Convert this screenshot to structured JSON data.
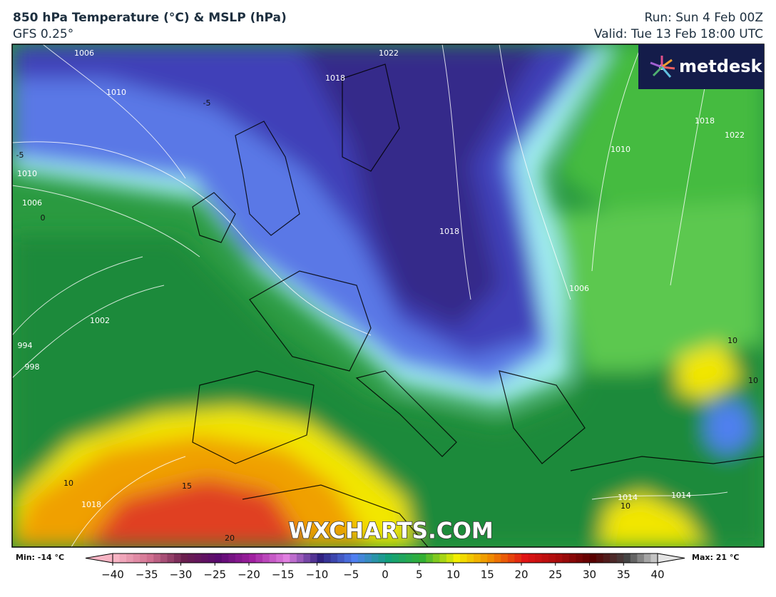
{
  "header": {
    "title": "850 hPa Temperature (°C) & MSLP (hPa)",
    "subtitle": "GFS 0.25°",
    "run": "Run: Sun 4 Feb 00Z",
    "valid": "Valid: Tue 13 Feb 18:00 UTC"
  },
  "logo": "metdesk",
  "watermark": "WXCHARTS.COM",
  "colorbar": {
    "min_label": "Min: -14 °C",
    "max_label": "Max: 21 °C",
    "range": [
      -40,
      40
    ],
    "ticks": [
      {
        "value": -40,
        "label": "−40"
      },
      {
        "value": -35,
        "label": "−35"
      },
      {
        "value": -30,
        "label": "−30"
      },
      {
        "value": -25,
        "label": "−25"
      },
      {
        "value": -20,
        "label": "−20"
      },
      {
        "value": -15,
        "label": "−15"
      },
      {
        "value": -10,
        "label": "−10"
      },
      {
        "value": -5,
        "label": "−5"
      },
      0,
      5,
      10,
      15,
      20,
      25,
      30,
      35,
      40
    ],
    "colors": [
      "#f8b4c4",
      "#d07090",
      "#6a1e4e",
      "#5a0a70",
      "#a020a0",
      "#e080e0",
      "#302080",
      "#4f7ff0",
      "#12a07a",
      "#34b034",
      "#f2ee00",
      "#f08a00",
      "#e01414",
      "#a80c0c",
      "#580000",
      "#444444",
      "#e4e4e4"
    ]
  },
  "contour_labels": [
    "1006",
    "1010",
    "1010",
    "1006",
    "0",
    "-5",
    "-5",
    "1018",
    "1006",
    "1010",
    "1018",
    "1022",
    "1002",
    "994",
    "998",
    "10",
    "15",
    "20",
    "1018",
    "10",
    "10",
    "10",
    "1014",
    "1022",
    "1018",
    "1014"
  ]
}
